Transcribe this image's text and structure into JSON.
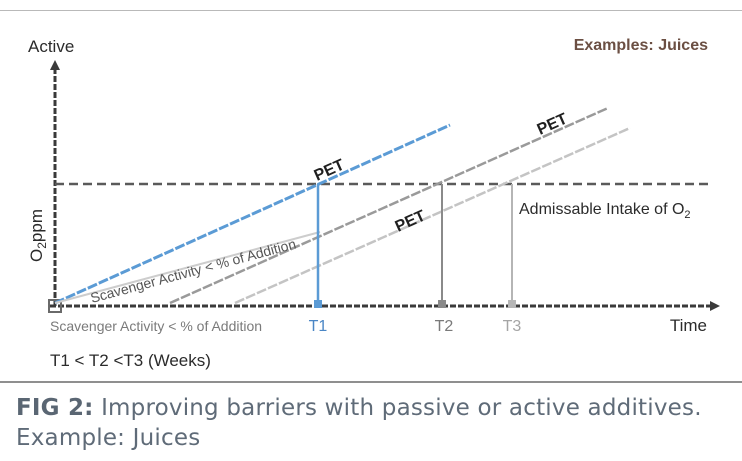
{
  "chart_data": {
    "type": "line",
    "title": "Examples: Juices",
    "xlabel": "Time",
    "ylabel_parts": {
      "main": "O",
      "sub": "2",
      "rest": "ppm"
    },
    "y_top_label": "Active",
    "x_ticks": [
      "T1",
      "T2",
      "T3"
    ],
    "x_tick_colors": [
      "#4a86c5",
      "#7a7a7a",
      "#a5a5a5"
    ],
    "series": [
      {
        "name": "PET",
        "color": "#5b9bd5"
      },
      {
        "name": "PET",
        "color": "#9a9a9a"
      },
      {
        "name": "PET",
        "color": "#c4c4c4"
      }
    ],
    "threshold": {
      "label_main": "Admissable Intake of O",
      "label_sub": "2"
    },
    "scavenger_label": "Scavenger Activity < % of Addition",
    "x_axis_note": "Scavenger Activity < % of Addition",
    "order_note": "T1 < T2 <T3 (Weeks)"
  },
  "caption": {
    "label": "FIG 2:",
    "text": " Improving barriers with passive or active additives. Example: Juices"
  }
}
